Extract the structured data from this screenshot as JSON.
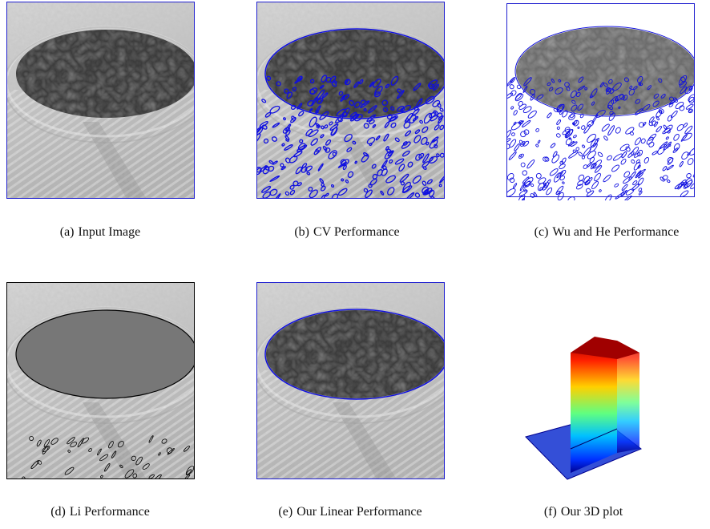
{
  "figure": {
    "subfigures": [
      {
        "label": "(a)",
        "caption": "Input Image"
      },
      {
        "label": "(b)",
        "caption": "CV Performance"
      },
      {
        "label": "(c)",
        "caption": "Wu and He Performance"
      },
      {
        "label": "(d)",
        "caption": "Li Performance"
      },
      {
        "label": "(e)",
        "caption": "Our Linear Performance"
      },
      {
        "label": "(f)",
        "caption": "Our 3D plot"
      }
    ]
  }
}
